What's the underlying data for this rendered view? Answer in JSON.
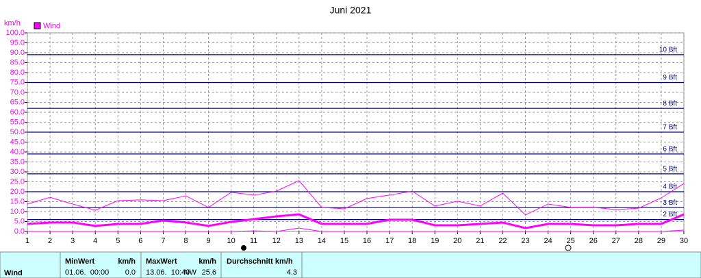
{
  "chart_data": {
    "type": "line",
    "title": "Juni 2021",
    "y_label": "km/h",
    "x": [
      1,
      2,
      3,
      4,
      5,
      6,
      7,
      8,
      9,
      10,
      11,
      12,
      13,
      14,
      15,
      16,
      17,
      18,
      19,
      20,
      21,
      22,
      23,
      24,
      25,
      26,
      27,
      28,
      29,
      30
    ],
    "xlim": [
      1,
      30
    ],
    "xticks": [
      1,
      2,
      3,
      4,
      5,
      6,
      7,
      8,
      9,
      10,
      11,
      12,
      13,
      14,
      15,
      16,
      17,
      18,
      19,
      20,
      21,
      22,
      23,
      24,
      25,
      26,
      27,
      28,
      29,
      30
    ],
    "ylim": [
      0,
      100
    ],
    "yticks": [
      {
        "value": 0,
        "label": "0.0"
      },
      {
        "value": 5,
        "label": "5.0"
      },
      {
        "value": 10,
        "label": "10.0"
      },
      {
        "value": 15,
        "label": "15.0"
      },
      {
        "value": 20,
        "label": "20.0"
      },
      {
        "value": 25,
        "label": "25.0"
      },
      {
        "value": 30,
        "label": "30.0"
      },
      {
        "value": 35,
        "label": "35.0"
      },
      {
        "value": 40,
        "label": "40.0"
      },
      {
        "value": 45,
        "label": "45.0"
      },
      {
        "value": 50,
        "label": "50.0"
      },
      {
        "value": 55,
        "label": "55.0"
      },
      {
        "value": 60,
        "label": "60.0"
      },
      {
        "value": 65,
        "label": "65.0"
      },
      {
        "value": 70,
        "label": "70.0"
      },
      {
        "value": 75,
        "label": "75.0"
      },
      {
        "value": 80,
        "label": "80.0"
      },
      {
        "value": 85,
        "label": "85.0"
      },
      {
        "value": 90,
        "label": "90.0"
      },
      {
        "value": 95,
        "label": "95.0"
      },
      {
        "value": 100,
        "label": "100.0"
      }
    ],
    "grid": true,
    "series": [
      {
        "name": "Wind",
        "color": "#ff00ff",
        "width": 3,
        "values": [
          3.8,
          4.5,
          4.5,
          2.8,
          3.8,
          3.8,
          5.5,
          4.5,
          2.8,
          4.8,
          6.2,
          7.6,
          8.6,
          3.8,
          3.8,
          3.8,
          5.9,
          5.9,
          3.1,
          3.1,
          3.8,
          4.5,
          1.7,
          3.8,
          3.8,
          3.1,
          3.1,
          3.8,
          3.8,
          8.6
        ]
      },
      {
        "color": "#ff00ff",
        "width": 1,
        "values": [
          13.8,
          17.2,
          13.8,
          10.7,
          15.5,
          15.9,
          15.5,
          17.9,
          12.1,
          19.7,
          18.3,
          20.3,
          25.6,
          12.1,
          11.4,
          16.6,
          18.3,
          20.3,
          12.8,
          15.2,
          12.8,
          19.3,
          8.3,
          13.8,
          12.1,
          12.1,
          11.0,
          11.7,
          16.9,
          24.1
        ]
      },
      {
        "color": "#ff00ff",
        "width": 1,
        "values": [
          0,
          0,
          0,
          0,
          0,
          0,
          0,
          0,
          0,
          0,
          0.3,
          0,
          1.7,
          0,
          0,
          0,
          0,
          0,
          0,
          0,
          0,
          0,
          0,
          0,
          0,
          0,
          0,
          0,
          0,
          0.7
        ]
      }
    ],
    "reference_color": "#000080",
    "reference_lines": [
      {
        "value": 6,
        "label": "2 Bft"
      },
      {
        "value": 12,
        "label": "3 Bft"
      },
      {
        "value": 20,
        "label": "4 Bft"
      },
      {
        "value": 29,
        "label": "5 Bft"
      },
      {
        "value": 39,
        "label": "6 Bft"
      },
      {
        "value": 50,
        "label": "7 Bft"
      },
      {
        "value": 62,
        "label": "8 Bft"
      },
      {
        "value": 75,
        "label": "9 Bft"
      },
      {
        "value": 89,
        "label": "10 Bft"
      }
    ]
  },
  "table": {
    "header": [
      "MinWert",
      "km/h",
      "MaxWert",
      "km/h",
      "Durchschnitt km/h"
    ],
    "row": {
      "label": "Wind",
      "min_time": "01.06.  00:00",
      "min": "0.0",
      "max_time": "13.06.  10:40",
      "max_dir": "NW",
      "max": "25.6",
      "avg": "4.3"
    }
  }
}
